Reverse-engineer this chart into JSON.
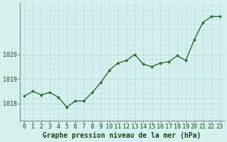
{
  "x": [
    0,
    1,
    2,
    3,
    4,
    5,
    6,
    7,
    8,
    9,
    10,
    11,
    12,
    13,
    14,
    15,
    16,
    17,
    18,
    19,
    20,
    21,
    22,
    23
  ],
  "y": [
    1018.3,
    1018.5,
    1018.35,
    1018.45,
    1018.25,
    1017.85,
    1018.1,
    1018.1,
    1018.45,
    1018.85,
    1019.35,
    1019.65,
    1019.75,
    1020.0,
    1019.6,
    1019.5,
    1019.65,
    1019.7,
    1019.95,
    1019.75,
    1020.6,
    1021.3,
    1021.55,
    1021.55
  ],
  "line_color": "#2d6a2d",
  "marker_color": "#2d6a2d",
  "bg_color": "#d6f0f0",
  "grid_color": "#b8dada",
  "xlabel": "Graphe pression niveau de la mer (hPa)",
  "xlabel_color": "#1a4a1a",
  "tick_color": "#1a4a1a",
  "yticks": [
    1018,
    1019,
    1020
  ],
  "ylim": [
    1017.3,
    1022.1
  ],
  "xlim": [
    -0.5,
    23.5
  ],
  "xtick_labels": [
    "0",
    "1",
    "2",
    "3",
    "4",
    "5",
    "6",
    "7",
    "8",
    "9",
    "10",
    "11",
    "12",
    "13",
    "14",
    "15",
    "16",
    "17",
    "18",
    "19",
    "20",
    "21",
    "22",
    "23"
  ],
  "axis_label_fontsize": 7,
  "tick_fontsize": 6,
  "grid_minor_color": "#c8e6e6"
}
